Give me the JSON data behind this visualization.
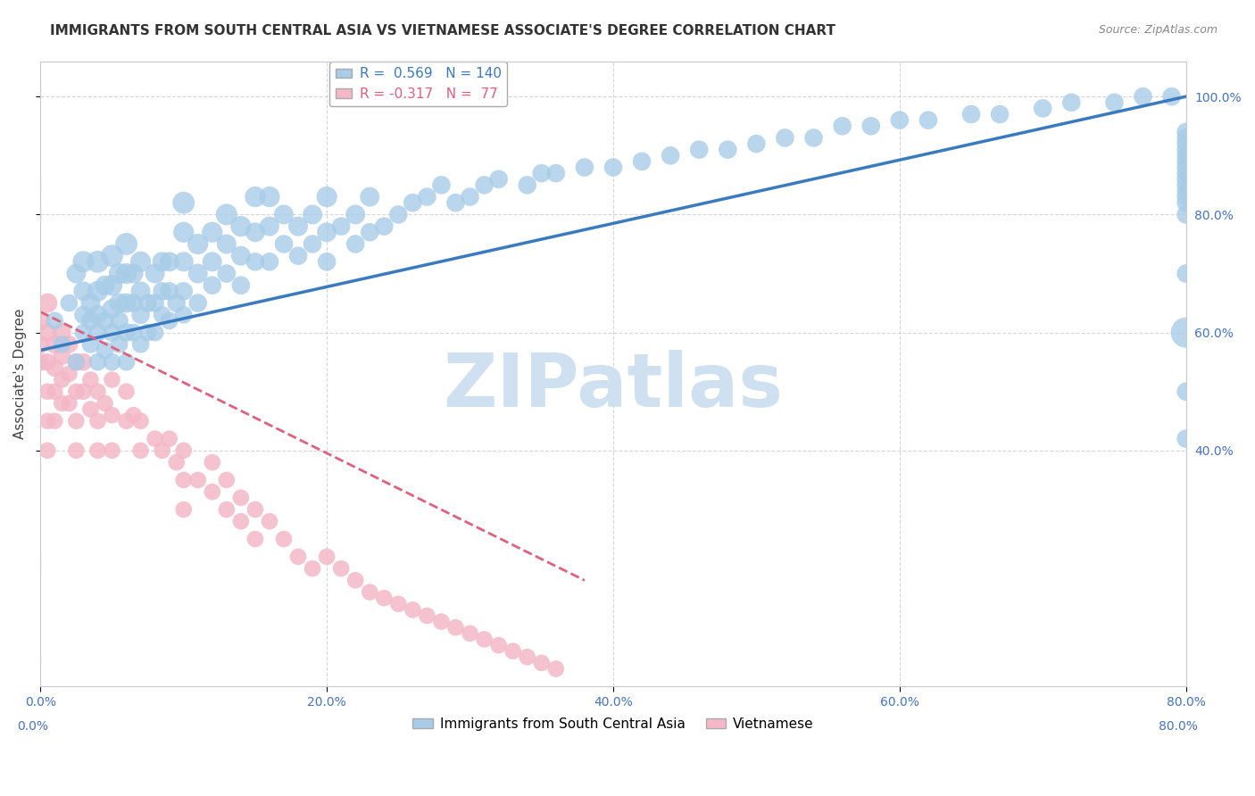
{
  "title": "IMMIGRANTS FROM SOUTH CENTRAL ASIA VS VIETNAMESE ASSOCIATE'S DEGREE CORRELATION CHART",
  "source": "Source: ZipAtlas.com",
  "ylabel": "Associate's Degree",
  "watermark": "ZIPatlas",
  "blue_R": 0.569,
  "blue_N": 140,
  "pink_R": -0.317,
  "pink_N": 77,
  "blue_color": "#a8cce8",
  "pink_color": "#f4b8c8",
  "blue_line_color": "#3a7abf",
  "pink_line_color": "#e0607e",
  "xlim": [
    0.0,
    0.8
  ],
  "ylim": [
    0.0,
    1.06
  ],
  "xtick_labels": [
    "0.0%",
    "20.0%",
    "40.0%",
    "60.0%",
    "80.0%"
  ],
  "xtick_values": [
    0.0,
    0.2,
    0.4,
    0.6,
    0.8
  ],
  "ytick_labels": [
    "40.0%",
    "60.0%",
    "80.0%",
    "100.0%"
  ],
  "ytick_values": [
    0.4,
    0.6,
    0.8,
    1.0
  ],
  "legend_label_blue": "Immigrants from South Central Asia",
  "legend_label_pink": "Vietnamese",
  "blue_scatter_x": [
    0.01,
    0.015,
    0.02,
    0.025,
    0.025,
    0.03,
    0.03,
    0.03,
    0.03,
    0.035,
    0.035,
    0.035,
    0.04,
    0.04,
    0.04,
    0.04,
    0.04,
    0.045,
    0.045,
    0.045,
    0.05,
    0.05,
    0.05,
    0.05,
    0.05,
    0.055,
    0.055,
    0.055,
    0.055,
    0.06,
    0.06,
    0.06,
    0.06,
    0.06,
    0.065,
    0.065,
    0.065,
    0.07,
    0.07,
    0.07,
    0.07,
    0.075,
    0.075,
    0.08,
    0.08,
    0.08,
    0.085,
    0.085,
    0.085,
    0.09,
    0.09,
    0.09,
    0.095,
    0.1,
    0.1,
    0.1,
    0.1,
    0.1,
    0.11,
    0.11,
    0.11,
    0.12,
    0.12,
    0.12,
    0.13,
    0.13,
    0.13,
    0.14,
    0.14,
    0.14,
    0.15,
    0.15,
    0.15,
    0.16,
    0.16,
    0.16,
    0.17,
    0.17,
    0.18,
    0.18,
    0.19,
    0.19,
    0.2,
    0.2,
    0.2,
    0.21,
    0.22,
    0.22,
    0.23,
    0.23,
    0.24,
    0.25,
    0.26,
    0.27,
    0.28,
    0.29,
    0.3,
    0.31,
    0.32,
    0.34,
    0.35,
    0.36,
    0.38,
    0.4,
    0.42,
    0.44,
    0.46,
    0.48,
    0.5,
    0.52,
    0.54,
    0.56,
    0.58,
    0.6,
    0.62,
    0.65,
    0.67,
    0.7,
    0.72,
    0.75,
    0.77,
    0.79,
    0.8,
    0.8,
    0.8,
    0.8,
    0.8,
    0.8,
    0.8,
    0.8,
    0.8,
    0.8,
    0.8,
    0.8,
    0.8,
    0.8,
    0.8,
    0.8,
    0.8,
    0.8
  ],
  "blue_scatter_y": [
    0.62,
    0.58,
    0.65,
    0.55,
    0.7,
    0.6,
    0.63,
    0.67,
    0.72,
    0.58,
    0.62,
    0.65,
    0.55,
    0.6,
    0.63,
    0.67,
    0.72,
    0.57,
    0.62,
    0.68,
    0.55,
    0.6,
    0.64,
    0.68,
    0.73,
    0.58,
    0.62,
    0.65,
    0.7,
    0.55,
    0.6,
    0.65,
    0.7,
    0.75,
    0.6,
    0.65,
    0.7,
    0.58,
    0.63,
    0.67,
    0.72,
    0.6,
    0.65,
    0.6,
    0.65,
    0.7,
    0.63,
    0.67,
    0.72,
    0.62,
    0.67,
    0.72,
    0.65,
    0.63,
    0.67,
    0.72,
    0.77,
    0.82,
    0.65,
    0.7,
    0.75,
    0.68,
    0.72,
    0.77,
    0.7,
    0.75,
    0.8,
    0.68,
    0.73,
    0.78,
    0.72,
    0.77,
    0.83,
    0.72,
    0.78,
    0.83,
    0.75,
    0.8,
    0.73,
    0.78,
    0.75,
    0.8,
    0.72,
    0.77,
    0.83,
    0.78,
    0.75,
    0.8,
    0.77,
    0.83,
    0.78,
    0.8,
    0.82,
    0.83,
    0.85,
    0.82,
    0.83,
    0.85,
    0.86,
    0.85,
    0.87,
    0.87,
    0.88,
    0.88,
    0.89,
    0.9,
    0.91,
    0.91,
    0.92,
    0.93,
    0.93,
    0.95,
    0.95,
    0.96,
    0.96,
    0.97,
    0.97,
    0.98,
    0.99,
    0.99,
    1.0,
    1.0,
    0.82,
    0.83,
    0.84,
    0.85,
    0.86,
    0.87,
    0.88,
    0.89,
    0.9,
    0.91,
    0.92,
    0.93,
    0.94,
    0.5,
    0.42,
    0.6,
    0.7,
    0.8
  ],
  "blue_scatter_size": [
    20,
    20,
    20,
    20,
    25,
    20,
    22,
    25,
    30,
    20,
    22,
    25,
    20,
    22,
    25,
    28,
    32,
    20,
    22,
    25,
    20,
    22,
    25,
    28,
    32,
    20,
    22,
    25,
    28,
    20,
    22,
    25,
    28,
    32,
    20,
    22,
    25,
    20,
    22,
    25,
    28,
    20,
    22,
    20,
    22,
    25,
    20,
    22,
    25,
    20,
    22,
    25,
    22,
    20,
    22,
    25,
    28,
    32,
    22,
    25,
    28,
    22,
    25,
    28,
    22,
    25,
    30,
    22,
    25,
    28,
    22,
    25,
    28,
    22,
    25,
    28,
    22,
    25,
    22,
    25,
    22,
    25,
    22,
    25,
    28,
    22,
    22,
    25,
    22,
    25,
    22,
    22,
    22,
    22,
    22,
    22,
    22,
    22,
    22,
    22,
    22,
    22,
    22,
    22,
    22,
    22,
    22,
    22,
    22,
    22,
    22,
    22,
    22,
    22,
    22,
    22,
    22,
    22,
    22,
    22,
    22,
    22,
    22,
    22,
    22,
    22,
    22,
    22,
    22,
    22,
    22,
    22,
    22,
    22,
    22,
    22,
    22,
    60,
    22,
    22,
    22,
    22,
    22
  ],
  "pink_scatter_x": [
    0.0,
    0.0,
    0.0,
    0.005,
    0.005,
    0.005,
    0.005,
    0.005,
    0.005,
    0.01,
    0.01,
    0.01,
    0.01,
    0.015,
    0.015,
    0.015,
    0.015,
    0.02,
    0.02,
    0.02,
    0.025,
    0.025,
    0.025,
    0.025,
    0.03,
    0.03,
    0.035,
    0.035,
    0.04,
    0.04,
    0.04,
    0.045,
    0.05,
    0.05,
    0.05,
    0.06,
    0.06,
    0.065,
    0.07,
    0.07,
    0.08,
    0.085,
    0.09,
    0.095,
    0.1,
    0.1,
    0.1,
    0.11,
    0.12,
    0.12,
    0.13,
    0.13,
    0.14,
    0.14,
    0.15,
    0.15,
    0.16,
    0.17,
    0.18,
    0.19,
    0.2,
    0.21,
    0.22,
    0.23,
    0.24,
    0.25,
    0.26,
    0.27,
    0.28,
    0.29,
    0.3,
    0.31,
    0.32,
    0.33,
    0.34,
    0.35,
    0.36
  ],
  "pink_scatter_y": [
    0.62,
    0.58,
    0.55,
    0.65,
    0.6,
    0.55,
    0.5,
    0.45,
    0.4,
    0.58,
    0.54,
    0.5,
    0.45,
    0.6,
    0.56,
    0.52,
    0.48,
    0.58,
    0.53,
    0.48,
    0.55,
    0.5,
    0.45,
    0.4,
    0.55,
    0.5,
    0.52,
    0.47,
    0.5,
    0.45,
    0.4,
    0.48,
    0.52,
    0.46,
    0.4,
    0.5,
    0.45,
    0.46,
    0.45,
    0.4,
    0.42,
    0.4,
    0.42,
    0.38,
    0.4,
    0.35,
    0.3,
    0.35,
    0.38,
    0.33,
    0.35,
    0.3,
    0.32,
    0.28,
    0.3,
    0.25,
    0.28,
    0.25,
    0.22,
    0.2,
    0.22,
    0.2,
    0.18,
    0.16,
    0.15,
    0.14,
    0.13,
    0.12,
    0.11,
    0.1,
    0.09,
    0.08,
    0.07,
    0.06,
    0.05,
    0.04,
    0.03
  ],
  "pink_scatter_size": [
    25,
    22,
    20,
    25,
    22,
    20,
    18,
    18,
    18,
    22,
    20,
    18,
    18,
    22,
    20,
    18,
    18,
    20,
    18,
    18,
    20,
    18,
    18,
    18,
    20,
    18,
    18,
    18,
    18,
    18,
    18,
    18,
    18,
    18,
    18,
    18,
    18,
    18,
    18,
    18,
    18,
    18,
    18,
    18,
    18,
    18,
    18,
    18,
    18,
    18,
    18,
    18,
    18,
    18,
    18,
    18,
    18,
    18,
    18,
    18,
    18,
    18,
    18,
    18,
    18,
    18,
    18,
    18,
    18,
    18,
    18,
    18,
    18,
    18,
    18,
    18,
    18
  ],
  "blue_line_x": [
    0.0,
    0.8
  ],
  "blue_line_y": [
    0.57,
    1.0
  ],
  "pink_line_x": [
    0.0,
    0.38
  ],
  "pink_line_y": [
    0.635,
    0.18
  ],
  "background_color": "#ffffff",
  "grid_color": "#cccccc",
  "title_fontsize": 11,
  "axis_label_fontsize": 11,
  "tick_fontsize": 10,
  "legend_fontsize": 11,
  "watermark_color": "#cfe0f0",
  "watermark_fontsize": 60,
  "right_tick_color": "#4472c4",
  "bottom_label_color": "#4472c4"
}
